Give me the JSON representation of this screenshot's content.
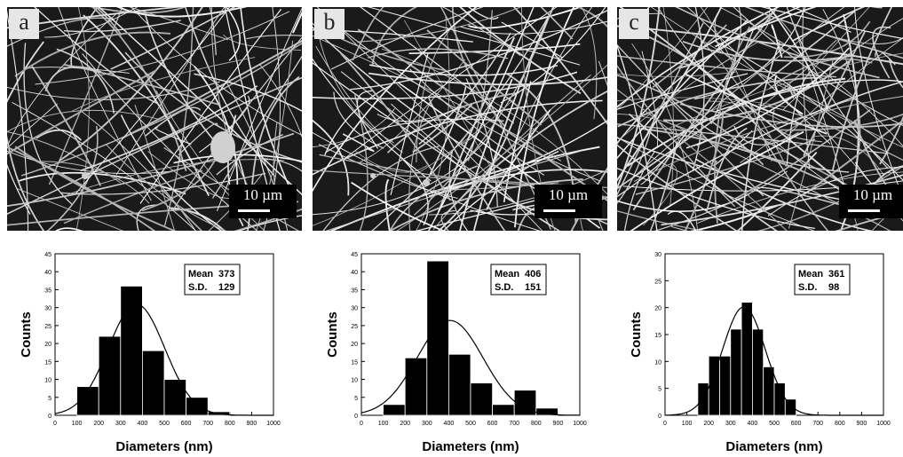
{
  "panels": [
    {
      "label": "a",
      "scale_bar": "10 µm"
    },
    {
      "label": "b",
      "scale_bar": "10 µm"
    },
    {
      "label": "c",
      "scale_bar": "10 µm"
    }
  ],
  "colors": {
    "bar": "#000000",
    "sem_bg": "#1a1a1a",
    "fiber": "#d9d9d9"
  },
  "chart_data": [
    {
      "type": "bar",
      "xlabel": "Diameters (nm)",
      "ylabel": "Counts",
      "xlim": [
        0,
        1000
      ],
      "ylim": [
        0,
        45
      ],
      "xticks": [
        0,
        100,
        200,
        300,
        400,
        500,
        600,
        700,
        800,
        900,
        1000
      ],
      "yticks": [
        0,
        5,
        10,
        15,
        20,
        25,
        30,
        35,
        40,
        45
      ],
      "bins": [
        [
          100,
          200
        ],
        [
          200,
          300
        ],
        [
          300,
          400
        ],
        [
          400,
          500
        ],
        [
          500,
          600
        ],
        [
          600,
          700
        ],
        [
          700,
          800
        ]
      ],
      "values": [
        8,
        22,
        36,
        18,
        10,
        5,
        1
      ],
      "fit": {
        "type": "gaussian",
        "mean": 373,
        "sd": 129
      },
      "legend": {
        "mean_label": "Mean",
        "mean": "373",
        "sd_label": "S.D.",
        "sd": "129"
      }
    },
    {
      "type": "bar",
      "xlabel": "Diameters (nm)",
      "ylabel": "Counts",
      "xlim": [
        0,
        1000
      ],
      "ylim": [
        0,
        45
      ],
      "xticks": [
        0,
        100,
        200,
        300,
        400,
        500,
        600,
        700,
        800,
        900,
        1000
      ],
      "yticks": [
        0,
        5,
        10,
        15,
        20,
        25,
        30,
        35,
        40,
        45
      ],
      "bins": [
        [
          100,
          200
        ],
        [
          200,
          300
        ],
        [
          300,
          400
        ],
        [
          400,
          500
        ],
        [
          500,
          600
        ],
        [
          600,
          700
        ],
        [
          700,
          800
        ],
        [
          800,
          900
        ]
      ],
      "values": [
        3,
        16,
        43,
        17,
        9,
        3,
        7,
        2
      ],
      "fit": {
        "type": "gaussian",
        "mean": 406,
        "sd": 151
      },
      "legend": {
        "mean_label": "Mean",
        "mean": "406",
        "sd_label": "S.D.",
        "sd": "151"
      }
    },
    {
      "type": "bar",
      "xlabel": "Diameters (nm)",
      "ylabel": "Counts",
      "xlim": [
        0,
        1000
      ],
      "ylim": [
        0,
        30
      ],
      "xticks": [
        0,
        100,
        200,
        300,
        400,
        500,
        600,
        700,
        800,
        900,
        1000
      ],
      "yticks": [
        0,
        5,
        10,
        15,
        20,
        25,
        30
      ],
      "bins": [
        [
          150,
          200
        ],
        [
          200,
          250
        ],
        [
          250,
          300
        ],
        [
          300,
          350
        ],
        [
          350,
          400
        ],
        [
          400,
          450
        ],
        [
          450,
          500
        ],
        [
          500,
          550
        ],
        [
          550,
          600
        ]
      ],
      "values": [
        6,
        11,
        11,
        16,
        21,
        16,
        9,
        6,
        3
      ],
      "fit": {
        "type": "gaussian",
        "mean": 361,
        "sd": 98
      },
      "legend": {
        "mean_label": "Mean",
        "mean": "361",
        "sd_label": "S.D.",
        "sd": "98"
      }
    }
  ]
}
